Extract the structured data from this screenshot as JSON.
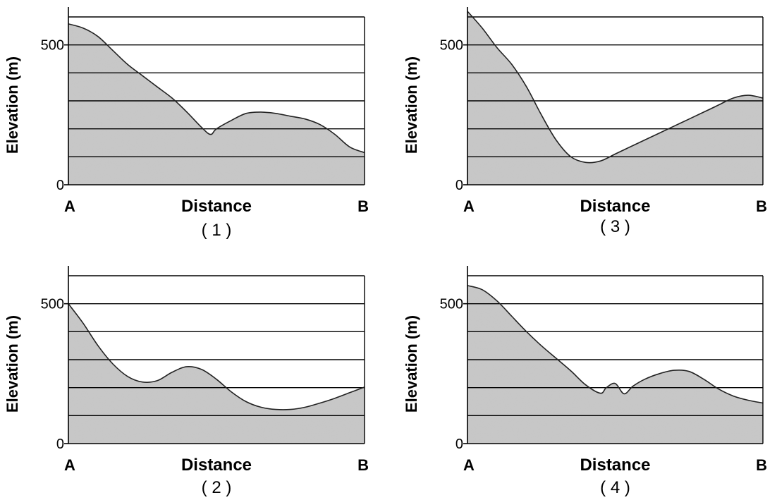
{
  "chart_data": [
    {
      "type": "area",
      "caption": "( 1 )",
      "ylabel": "Elevation (m)",
      "xlabel": "Distance",
      "start_label": "A",
      "end_label": "B",
      "ylim": [
        0,
        600
      ],
      "yticks": [
        0,
        500
      ],
      "gridlines": [
        100,
        200,
        300,
        400,
        500,
        600
      ],
      "x": [
        0,
        0.05,
        0.1,
        0.15,
        0.2,
        0.25,
        0.3,
        0.35,
        0.4,
        0.45,
        0.48,
        0.5,
        0.55,
        0.6,
        0.65,
        0.7,
        0.75,
        0.8,
        0.85,
        0.9,
        0.95,
        1.0
      ],
      "elevation": [
        575,
        560,
        530,
        480,
        430,
        390,
        350,
        310,
        260,
        205,
        180,
        200,
        230,
        255,
        260,
        255,
        245,
        235,
        215,
        180,
        135,
        115
      ]
    },
    {
      "type": "area",
      "caption": "( 2 )",
      "ylabel": "Elevation (m)",
      "xlabel": "Distance",
      "start_label": "A",
      "end_label": "B",
      "ylim": [
        0,
        600
      ],
      "yticks": [
        0,
        500
      ],
      "gridlines": [
        100,
        200,
        300,
        400,
        500,
        600
      ],
      "x": [
        0,
        0.05,
        0.1,
        0.15,
        0.2,
        0.25,
        0.3,
        0.35,
        0.4,
        0.45,
        0.5,
        0.55,
        0.6,
        0.65,
        0.7,
        0.75,
        0.8,
        0.85,
        0.9,
        0.95,
        1.0
      ],
      "elevation": [
        500,
        430,
        350,
        285,
        240,
        220,
        225,
        255,
        275,
        265,
        230,
        185,
        150,
        130,
        122,
        122,
        130,
        145,
        162,
        182,
        202
      ]
    },
    {
      "type": "area",
      "caption": "( 3 )",
      "ylabel": "Elevation (m)",
      "xlabel": "Distance",
      "start_label": "A",
      "end_label": "B",
      "ylim": [
        0,
        600
      ],
      "yticks": [
        0,
        500
      ],
      "gridlines": [
        100,
        200,
        300,
        400,
        500,
        600
      ],
      "x": [
        0,
        0.05,
        0.1,
        0.15,
        0.2,
        0.25,
        0.3,
        0.35,
        0.4,
        0.45,
        0.5,
        0.55,
        0.6,
        0.65,
        0.7,
        0.75,
        0.8,
        0.85,
        0.9,
        0.95,
        1.0
      ],
      "elevation": [
        620,
        560,
        490,
        430,
        350,
        250,
        160,
        100,
        80,
        85,
        110,
        135,
        160,
        185,
        210,
        235,
        260,
        285,
        310,
        320,
        310
      ]
    },
    {
      "type": "area",
      "caption": "( 4 )",
      "ylabel": "Elevation (m)",
      "xlabel": "Distance",
      "start_label": "A",
      "end_label": "B",
      "ylim": [
        0,
        600
      ],
      "yticks": [
        0,
        500
      ],
      "gridlines": [
        100,
        200,
        300,
        400,
        500,
        600
      ],
      "x": [
        0,
        0.05,
        0.1,
        0.15,
        0.2,
        0.25,
        0.3,
        0.35,
        0.4,
        0.45,
        0.47,
        0.5,
        0.53,
        0.56,
        0.6,
        0.65,
        0.7,
        0.75,
        0.8,
        0.85,
        0.9,
        0.95,
        1.0
      ],
      "elevation": [
        565,
        550,
        510,
        455,
        400,
        350,
        305,
        260,
        210,
        180,
        200,
        215,
        178,
        205,
        230,
        250,
        262,
        258,
        230,
        195,
        170,
        155,
        145
      ]
    }
  ]
}
